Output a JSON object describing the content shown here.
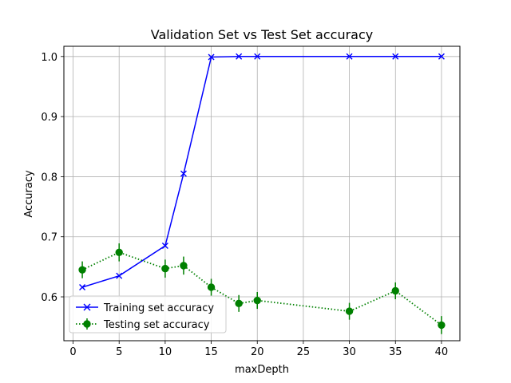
{
  "chart_data": {
    "type": "line",
    "title": "Validation Set vs Test Set accuracy",
    "xlabel": "maxDepth",
    "ylabel": "Accuracy",
    "xlim": [
      -1,
      42
    ],
    "ylim": [
      0.527,
      1.017
    ],
    "x_ticks": [
      0,
      5,
      10,
      15,
      20,
      25,
      30,
      35,
      40
    ],
    "y_ticks": [
      0.6,
      0.7,
      0.8,
      0.9,
      1.0
    ],
    "y_tick_labels": [
      "0.6",
      "0.7",
      "0.8",
      "0.9",
      "1.0"
    ],
    "grid": true,
    "legend_position": "lower-left",
    "series": [
      {
        "name": "Training set accuracy",
        "color": "#0000ff",
        "linestyle": "solid",
        "marker": "x",
        "x": [
          1,
          5,
          10,
          12,
          15,
          18,
          20,
          30,
          35,
          40
        ],
        "y": [
          0.616,
          0.635,
          0.685,
          0.805,
          0.999,
          1.0,
          1.0,
          1.0,
          1.0,
          1.0
        ]
      },
      {
        "name": "Testing set accuracy",
        "color": "#008000",
        "linestyle": "dotted",
        "marker": "circle",
        "x": [
          1,
          5,
          10,
          12,
          15,
          18,
          20,
          30,
          35,
          40
        ],
        "y": [
          0.645,
          0.674,
          0.647,
          0.652,
          0.616,
          0.589,
          0.594,
          0.576,
          0.61,
          0.553
        ],
        "error": [
          0.014,
          0.015,
          0.015,
          0.015,
          0.014,
          0.014,
          0.014,
          0.014,
          0.014,
          0.015
        ]
      }
    ]
  }
}
